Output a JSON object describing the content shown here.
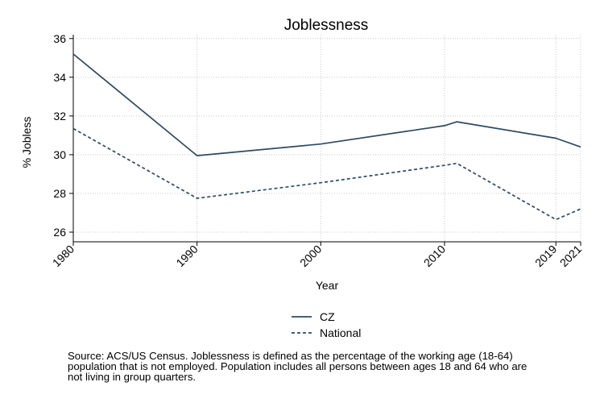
{
  "chart_data": {
    "type": "line",
    "title": "Joblessness",
    "xlabel": "Year",
    "ylabel": "% Jobless",
    "x": [
      1980,
      1990,
      2000,
      2010,
      2011,
      2019,
      2021
    ],
    "xticks": [
      1980,
      1990,
      2000,
      2010,
      2019,
      2021
    ],
    "yticks": [
      26,
      28,
      30,
      32,
      34,
      36
    ],
    "xlim": [
      1980,
      2021
    ],
    "ylim": [
      25.5,
      36.2
    ],
    "grid": true,
    "legend_position": "bottom-center",
    "series": [
      {
        "name": "CZ",
        "style": "solid",
        "color": "#2d4a61",
        "values": [
          35.2,
          29.95,
          30.55,
          31.5,
          31.7,
          30.85,
          30.4
        ]
      },
      {
        "name": "National",
        "style": "dashed",
        "color": "#2d4a61",
        "values": [
          31.35,
          27.75,
          28.55,
          29.45,
          29.55,
          26.65,
          27.2
        ]
      }
    ]
  },
  "footnote": {
    "line1": "Source: ACS/US Census. Joblessness is defined as the percentage of the working age (18-64)",
    "line2": "population that is not employed. Population includes all persons between ages 18 and 64 who are",
    "line3": "not living in group quarters."
  }
}
